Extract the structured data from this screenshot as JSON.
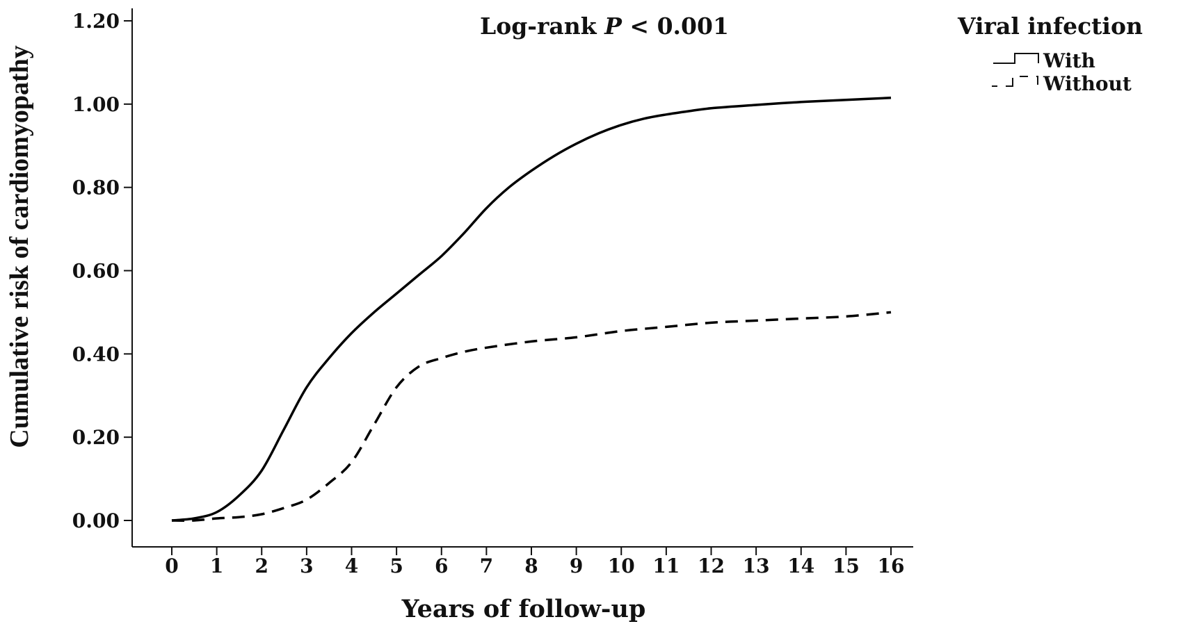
{
  "chart_data": {
    "type": "line",
    "title": "",
    "xlabel": "Years of follow-up",
    "ylabel": "Cumulative risk of cardiomyopathy",
    "annotation": {
      "prefix": "Log-rank ",
      "p": "P",
      "suffix": " < 0.001"
    },
    "xlim": [
      0,
      16
    ],
    "ylim": [
      0,
      1.2
    ],
    "xticks": [
      "0",
      "1",
      "2",
      "3",
      "4",
      "5",
      "6",
      "7",
      "8",
      "9",
      "10",
      "11",
      "12",
      "13",
      "14",
      "15",
      "16"
    ],
    "yticks": [
      "0.00",
      "0.20",
      "0.40",
      "0.60",
      "0.80",
      "1.00",
      "1.20"
    ],
    "legend": {
      "title": "Viral infection",
      "placement": "top-right"
    },
    "series": [
      {
        "name": "With",
        "style": "solid",
        "color": "#000000",
        "x": [
          0,
          0.5,
          1.0,
          1.5,
          2.0,
          2.5,
          3.0,
          3.5,
          4.0,
          4.5,
          5.0,
          5.5,
          6.0,
          6.5,
          7.0,
          7.5,
          8.0,
          8.5,
          9.0,
          9.5,
          10.0,
          10.5,
          11.0,
          11.5,
          12.0,
          13.0,
          14.0,
          15.0,
          16.0
        ],
        "y": [
          0.0,
          0.005,
          0.02,
          0.06,
          0.12,
          0.22,
          0.32,
          0.39,
          0.45,
          0.5,
          0.545,
          0.59,
          0.635,
          0.69,
          0.75,
          0.8,
          0.84,
          0.875,
          0.905,
          0.93,
          0.95,
          0.965,
          0.975,
          0.983,
          0.99,
          0.998,
          1.005,
          1.01,
          1.015
        ]
      },
      {
        "name": "Without",
        "style": "dashed",
        "color": "#000000",
        "x": [
          0,
          0.5,
          1.0,
          1.5,
          2.0,
          2.5,
          3.0,
          3.5,
          4.0,
          4.5,
          5.0,
          5.5,
          6.0,
          6.5,
          7.0,
          8.0,
          9.0,
          10.0,
          11.0,
          12.0,
          13.0,
          14.0,
          15.0,
          16.0
        ],
        "y": [
          0.0,
          0.0,
          0.005,
          0.008,
          0.015,
          0.03,
          0.05,
          0.09,
          0.14,
          0.23,
          0.32,
          0.37,
          0.39,
          0.405,
          0.415,
          0.43,
          0.44,
          0.455,
          0.465,
          0.475,
          0.48,
          0.485,
          0.49,
          0.5
        ]
      }
    ]
  }
}
